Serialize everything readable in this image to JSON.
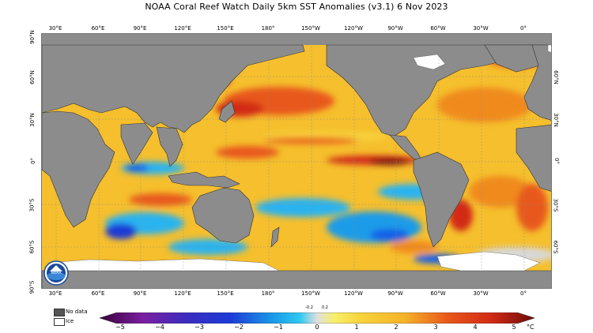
{
  "title": "NOAA Coral Reef Watch Daily 5km SST Anomalies  (v3.1)    6 Nov 2023",
  "logo_text": "NOAA",
  "lon_labels": [
    "30°E",
    "60°E",
    "90°E",
    "120°E",
    "150°E",
    "180°",
    "150°W",
    "120°W",
    "90°W",
    "60°W",
    "30°W",
    "0°"
  ],
  "lat_labels": [
    "90°N",
    "60°N",
    "30°N",
    "0°",
    "30°S",
    "60°S",
    "90°S"
  ],
  "legend": {
    "nodata_label": "No data",
    "ice_label": "Ice",
    "nodata_color": "#555555",
    "ice_color": "#ffffff"
  },
  "colorbar": {
    "ticks": [
      "−5",
      "−4",
      "−3",
      "−2",
      "−1",
      "0",
      "1",
      "2",
      "3",
      "4",
      "5"
    ],
    "small_ticks": [
      "-0.2",
      "0.2"
    ],
    "unit": "°C",
    "range": [
      -5,
      5
    ],
    "colors": [
      "#3d003d",
      "#5a0a6e",
      "#7a1fa0",
      "#4a2cc0",
      "#1c3ad6",
      "#1560e8",
      "#1a9be8",
      "#2ec8f0",
      "#cfe8f2",
      "#f7f06a",
      "#f8d33c",
      "#f5b429",
      "#f08a1e",
      "#e8581a",
      "#d22a14",
      "#a8140e",
      "#6e0a08"
    ]
  },
  "colors": {
    "land": "#8c8c8c",
    "ice": "#ffffff",
    "warm_base": "#f5bf2d",
    "hot": "#e8581a",
    "very_hot": "#a8140e",
    "cool": "#2bb3ef",
    "cold": "#1560e8",
    "neutral": "#d8d8d8"
  }
}
